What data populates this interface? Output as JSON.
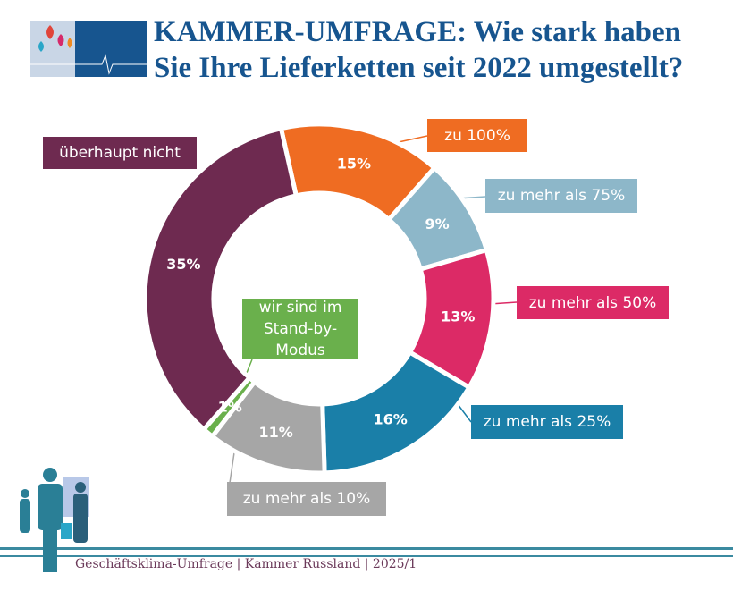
{
  "header": {
    "title": "KAMMER-UMFRAGE: Wie stark haben Sie Ihre Lieferketten seit 2022 umgestellt?"
  },
  "chart_data": {
    "type": "pie",
    "variant": "donut",
    "categories": [
      "zu 100%",
      "zu mehr als 75%",
      "zu mehr als 50%",
      "zu mehr als 25%",
      "zu mehr als 10%",
      "wir sind im Stand-by-Modus",
      "überhaupt nicht"
    ],
    "values": [
      15,
      9,
      13,
      16,
      11,
      1,
      35
    ],
    "value_labels": [
      "15%",
      "9%",
      "13%",
      "16%",
      "11%",
      "1%",
      "35%"
    ],
    "colors": [
      "#ef6c22",
      "#8db7c9",
      "#dc2a66",
      "#1a7fa8",
      "#a6a6a6",
      "#6ab04c",
      "#6e2a50"
    ]
  },
  "footer": {
    "source": "Geschäftsklima-Umfrage | Kammer Russland | 2025/1"
  }
}
